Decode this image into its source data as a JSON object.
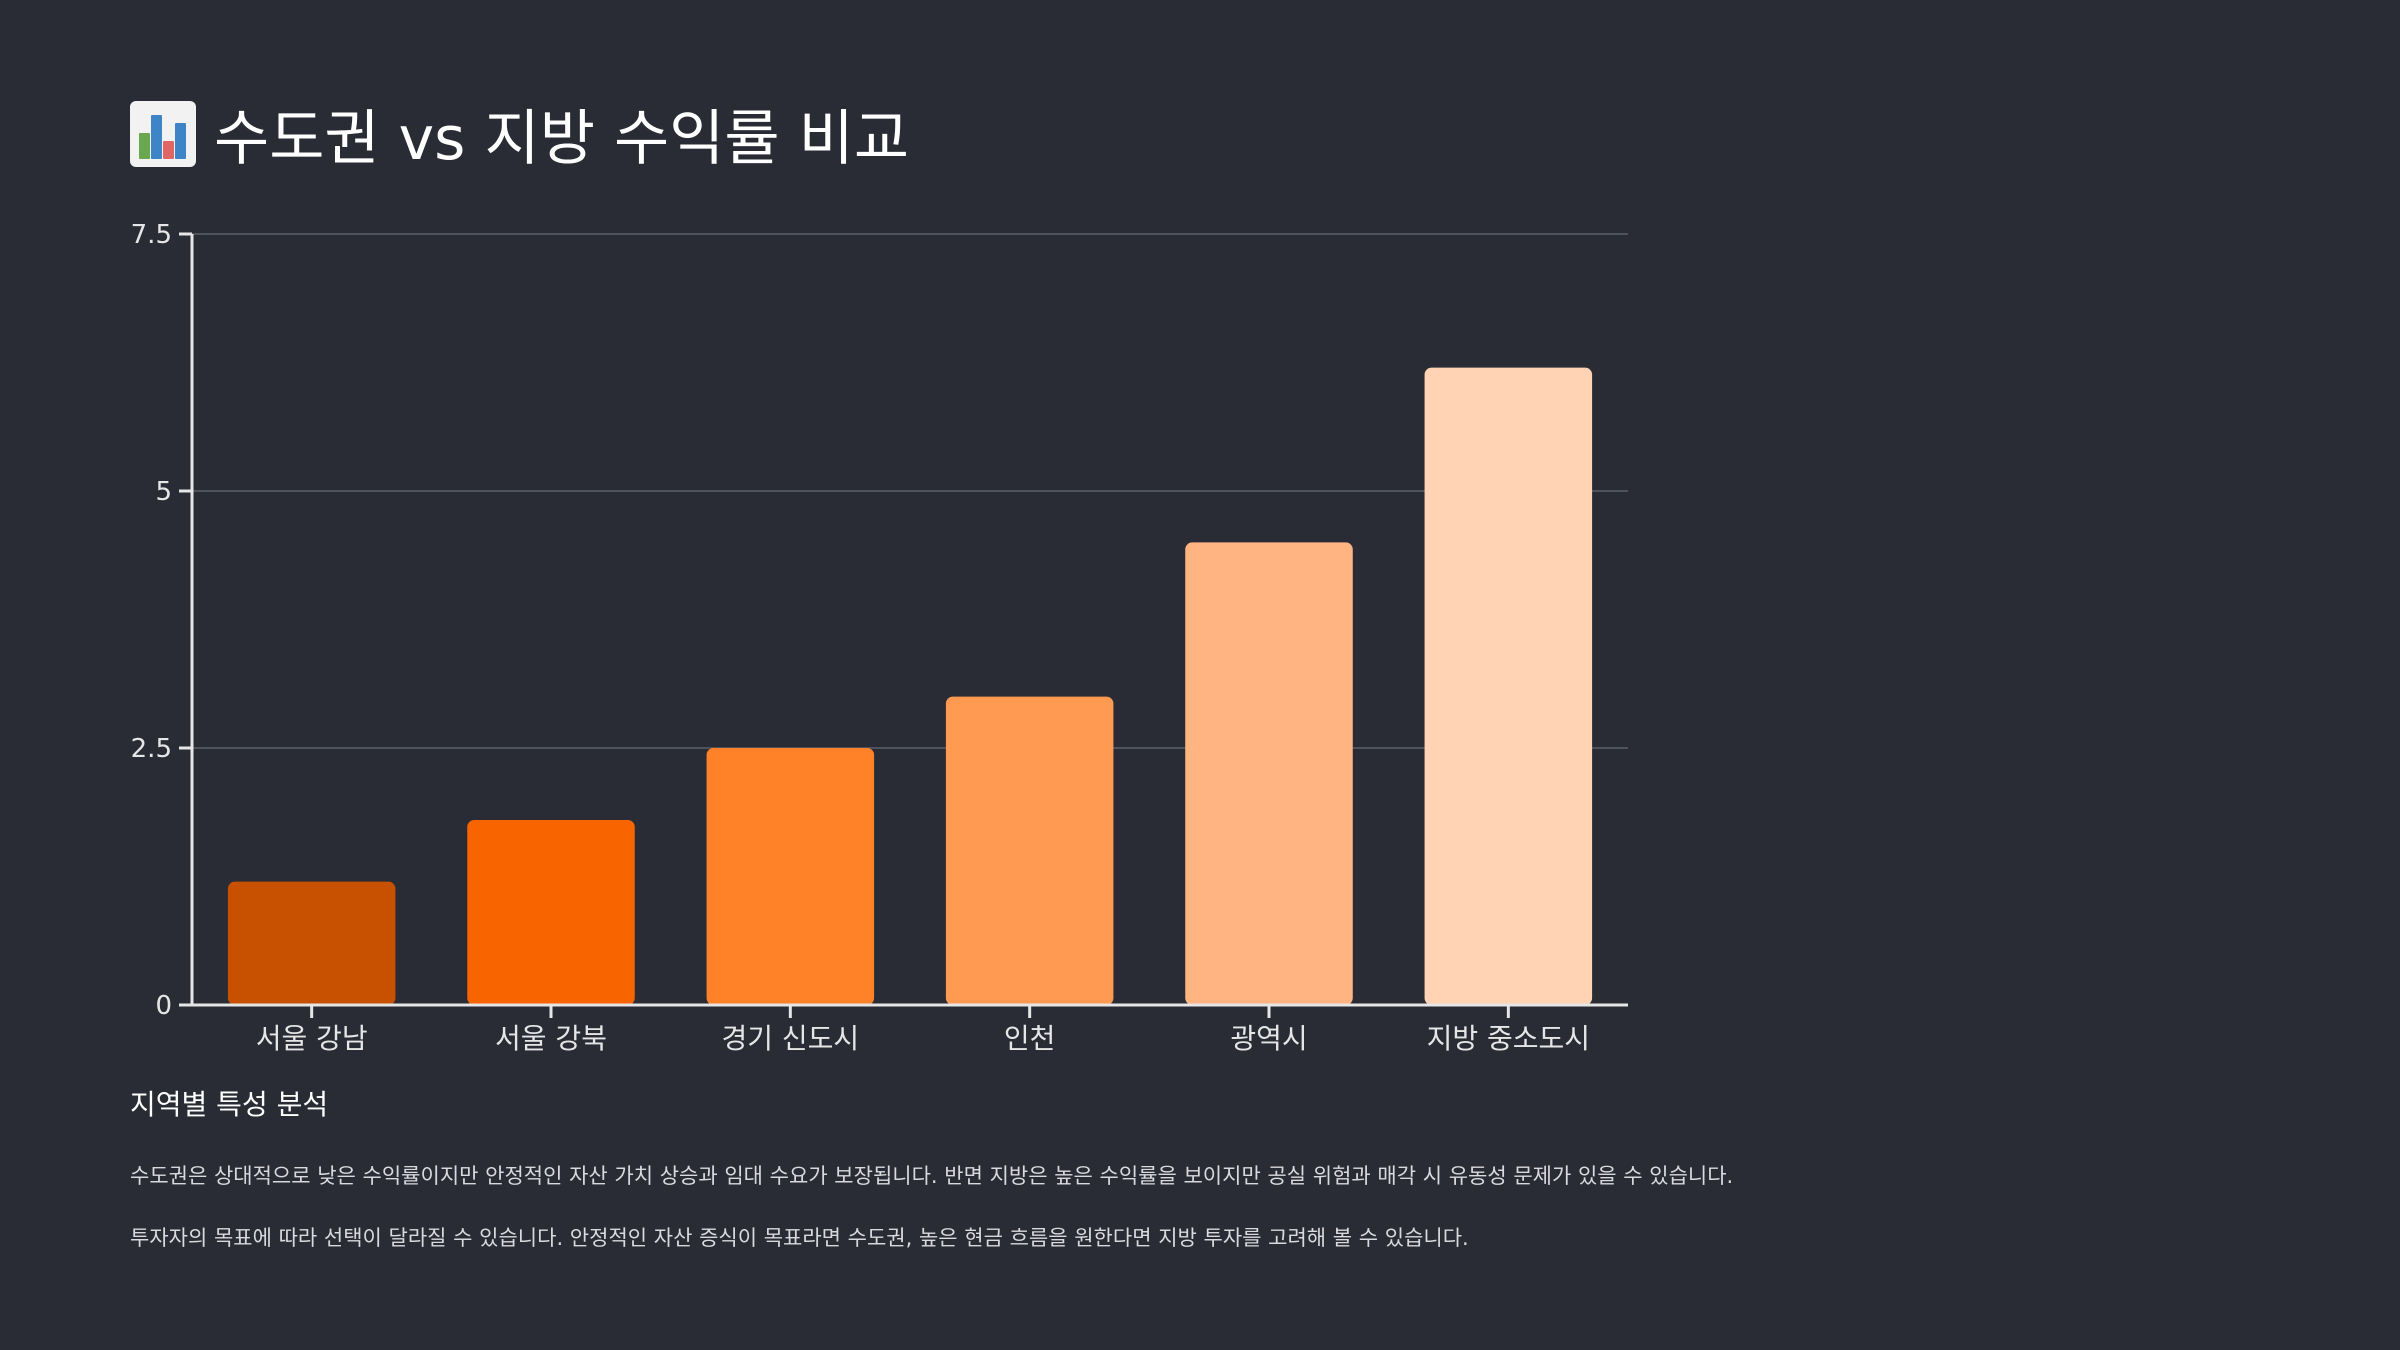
{
  "title": "수도권 vs 지방 수익률 비교",
  "title_icon": "bar-chart-icon",
  "chart_data": {
    "type": "bar",
    "categories": [
      "서울 강남",
      "서울 강북",
      "경기 신도시",
      "인천",
      "광역시",
      "지방 중소도시"
    ],
    "values": [
      1.2,
      1.8,
      2.5,
      3.0,
      4.5,
      6.2
    ],
    "colors": [
      "#c75100",
      "#f76400",
      "#ff8228",
      "#ff9a52",
      "#ffb482",
      "#ffd3b3"
    ],
    "title": "",
    "xlabel": "",
    "ylabel": "",
    "ylim": [
      0,
      7.5
    ],
    "yticks": [
      0,
      2.5,
      5,
      7.5
    ],
    "ytick_labels": [
      "0",
      "2.5",
      "5",
      "7.5"
    ],
    "grid": true
  },
  "analysis": {
    "heading": "지역별 특성 분석",
    "paragraphs": [
      "수도권은 상대적으로 낮은 수익률이지만 안정적인 자산 가치 상승과 임대 수요가 보장됩니다. 반면 지방은 높은 수익률을 보이지만 공실 위험과 매각 시 유동성 문제가 있을 수 있습니다.",
      "투자자의 목표에 따라 선택이 달라질 수 있습니다. 안정적인 자산 증식이 목표라면 수도권, 높은 현금 흐름을 원한다면 지방 투자를 고려해 볼 수 있습니다."
    ]
  }
}
